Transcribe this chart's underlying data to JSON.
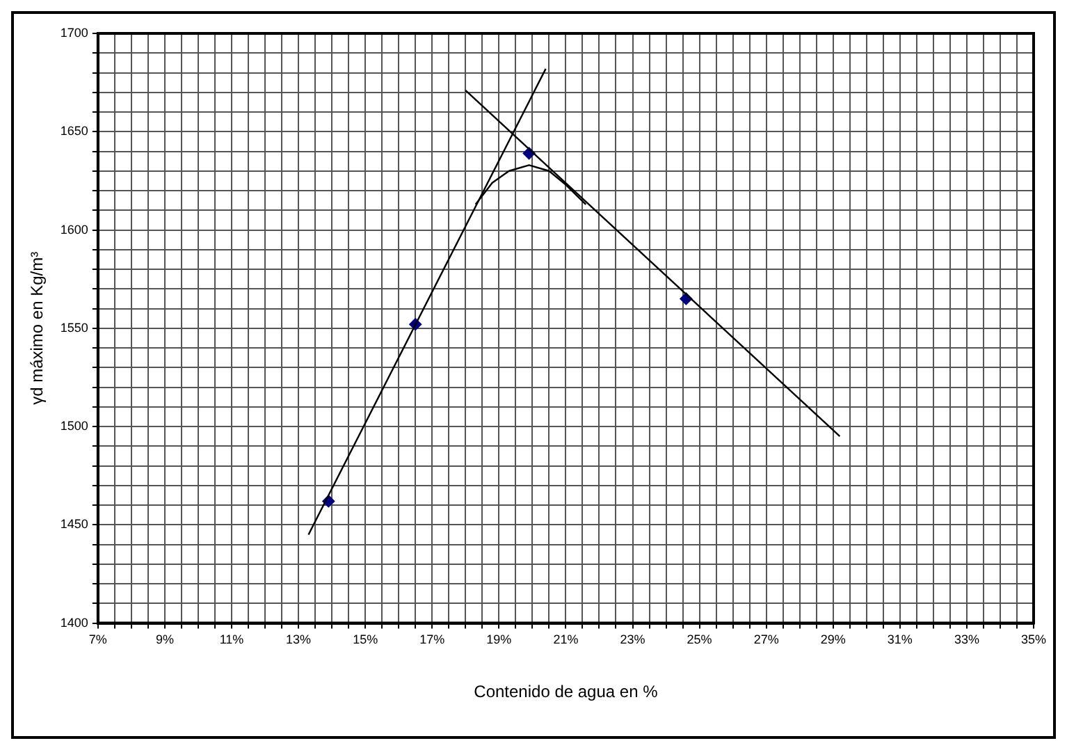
{
  "chart_data": {
    "type": "scatter",
    "xlabel": "Contenido de agua en %",
    "ylabel": "γd máximo en Kg/m³",
    "xlim": [
      7,
      35
    ],
    "ylim": [
      1400,
      1700
    ],
    "xticks": [
      {
        "value": 7,
        "label": "7%"
      },
      {
        "value": 7.5,
        "label": null
      },
      {
        "value": 8,
        "label": null
      },
      {
        "value": 8.5,
        "label": null
      },
      {
        "value": 9,
        "label": "9%"
      },
      {
        "value": 9.5,
        "label": null
      },
      {
        "value": 10,
        "label": null
      },
      {
        "value": 10.5,
        "label": null
      },
      {
        "value": 11,
        "label": "11%"
      },
      {
        "value": 11.5,
        "label": null
      },
      {
        "value": 12,
        "label": null
      },
      {
        "value": 12.5,
        "label": null
      },
      {
        "value": 13,
        "label": "13%"
      },
      {
        "value": 13.5,
        "label": null
      },
      {
        "value": 14,
        "label": null
      },
      {
        "value": 14.5,
        "label": null
      },
      {
        "value": 15,
        "label": "15%"
      },
      {
        "value": 15.5,
        "label": null
      },
      {
        "value": 16,
        "label": null
      },
      {
        "value": 16.5,
        "label": null
      },
      {
        "value": 17,
        "label": "17%"
      },
      {
        "value": 17.5,
        "label": null
      },
      {
        "value": 18,
        "label": null
      },
      {
        "value": 18.5,
        "label": null
      },
      {
        "value": 19,
        "label": "19%"
      },
      {
        "value": 19.5,
        "label": null
      },
      {
        "value": 20,
        "label": null
      },
      {
        "value": 20.5,
        "label": null
      },
      {
        "value": 21,
        "label": "21%"
      },
      {
        "value": 21.5,
        "label": null
      },
      {
        "value": 22,
        "label": null
      },
      {
        "value": 22.5,
        "label": null
      },
      {
        "value": 23,
        "label": "23%"
      },
      {
        "value": 23.5,
        "label": null
      },
      {
        "value": 24,
        "label": null
      },
      {
        "value": 24.5,
        "label": null
      },
      {
        "value": 25,
        "label": "25%"
      },
      {
        "value": 25.5,
        "label": null
      },
      {
        "value": 26,
        "label": null
      },
      {
        "value": 26.5,
        "label": null
      },
      {
        "value": 27,
        "label": "27%"
      },
      {
        "value": 27.5,
        "label": null
      },
      {
        "value": 28,
        "label": null
      },
      {
        "value": 28.5,
        "label": null
      },
      {
        "value": 29,
        "label": "29%"
      },
      {
        "value": 29.5,
        "label": null
      },
      {
        "value": 30,
        "label": null
      },
      {
        "value": 30.5,
        "label": null
      },
      {
        "value": 31,
        "label": "31%"
      },
      {
        "value": 31.5,
        "label": null
      },
      {
        "value": 32,
        "label": null
      },
      {
        "value": 32.5,
        "label": null
      },
      {
        "value": 33,
        "label": "33%"
      },
      {
        "value": 33.5,
        "label": null
      },
      {
        "value": 34,
        "label": null
      },
      {
        "value": 34.5,
        "label": null
      },
      {
        "value": 35,
        "label": "35%"
      }
    ],
    "yticks": [
      1400,
      {
        "value": 1410,
        "label": null
      },
      {
        "value": 1420,
        "label": null
      },
      {
        "value": 1430,
        "label": null
      },
      {
        "value": 1440,
        "label": null
      },
      1450,
      {
        "value": 1460,
        "label": null
      },
      {
        "value": 1470,
        "label": null
      },
      {
        "value": 1480,
        "label": null
      },
      {
        "value": 1490,
        "label": null
      },
      1500,
      {
        "value": 1510,
        "label": null
      },
      {
        "value": 1520,
        "label": null
      },
      {
        "value": 1530,
        "label": null
      },
      {
        "value": 1540,
        "label": null
      },
      1550,
      {
        "value": 1560,
        "label": null
      },
      {
        "value": 1570,
        "label": null
      },
      {
        "value": 1580,
        "label": null
      },
      {
        "value": 1590,
        "label": null
      },
      1600,
      {
        "value": 1610,
        "label": null
      },
      {
        "value": 1620,
        "label": null
      },
      {
        "value": 1630,
        "label": null
      },
      {
        "value": 1640,
        "label": null
      },
      1650,
      {
        "value": 1660,
        "label": null
      },
      {
        "value": 1670,
        "label": null
      },
      {
        "value": 1680,
        "label": null
      },
      {
        "value": 1690,
        "label": null
      },
      1700
    ],
    "grid": true,
    "legend": false,
    "series": [
      {
        "type": "line",
        "color": "#000000",
        "marker": "none",
        "x": [
          13.3,
          20.4
        ],
        "values": [
          1445,
          1682
        ]
      },
      {
        "type": "line",
        "color": "#000000",
        "marker": "none",
        "x": [
          18.0,
          29.2
        ],
        "values": [
          1671,
          1495
        ]
      },
      {
        "type": "line",
        "color": "#000000",
        "marker": "none",
        "x": [
          18.3,
          18.8,
          19.3,
          19.9,
          20.5,
          21.0,
          21.6
        ],
        "values": [
          1613,
          1624,
          1630,
          1633,
          1630,
          1623,
          1613
        ]
      },
      {
        "type": "scatter",
        "color": "#000080",
        "marker": "diamond",
        "x": [
          13.9,
          16.5,
          19.9,
          24.6
        ],
        "values": [
          1462,
          1552,
          1639,
          1565
        ]
      }
    ]
  }
}
